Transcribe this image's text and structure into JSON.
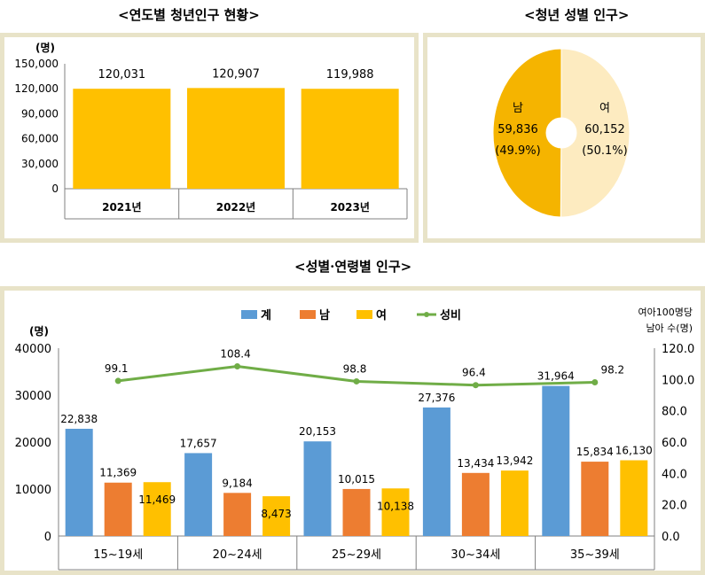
{
  "titles": {
    "annual": "<연도별 청년인구 현황>",
    "gender": "<청년 성별 인구>",
    "age": "<성별·연령별 인구>"
  },
  "chart_data": [
    {
      "type": "bar",
      "title": "<연도별 청년인구 현황>",
      "unit": "(명)",
      "categories": [
        "2021년",
        "2022년",
        "2023년"
      ],
      "values": [
        120031,
        120907,
        119988
      ],
      "value_labels": [
        "120,031",
        "120,907",
        "119,988"
      ],
      "ylim": [
        0,
        150000
      ],
      "yticks": [
        "0",
        "30,000",
        "60,000",
        "90,000",
        "120,000",
        "150,000"
      ],
      "colors": {
        "bar": "#ffc000"
      }
    },
    {
      "type": "pie",
      "title": "<청년 성별 인구>",
      "slices": [
        {
          "label": "남",
          "value": 59836,
          "value_label": "59,836",
          "pct_label": "(49.9%)",
          "color": "#f5b400"
        },
        {
          "label": "여",
          "value": 60152,
          "value_label": "60,152",
          "pct_label": "(50.1%)",
          "color": "#fdebc0"
        }
      ]
    },
    {
      "type": "bar",
      "title": "<성별·연령별 인구>",
      "unit_left": "(명)",
      "unit_right": [
        "여아100명당",
        "남아 수(명)"
      ],
      "categories": [
        "15~19세",
        "20~24세",
        "25~29세",
        "30~34세",
        "35~39세"
      ],
      "series": [
        {
          "name": "계",
          "values": [
            22838,
            17657,
            20153,
            27376,
            31964
          ],
          "labels": [
            "22,838",
            "17,657",
            "20,153",
            "27,376",
            "31,964"
          ],
          "color": "#5b9bd5"
        },
        {
          "name": "남",
          "values": [
            11369,
            9184,
            10015,
            13434,
            15834
          ],
          "labels": [
            "11,369",
            "9,184",
            "10,015",
            "13,434",
            "15,834"
          ],
          "color": "#ed7d31"
        },
        {
          "name": "여",
          "values": [
            11469,
            8473,
            10138,
            13942,
            16130
          ],
          "labels": [
            "11,469",
            "8,473",
            "10,138",
            "13,942",
            "16,130"
          ],
          "color": "#ffc000"
        }
      ],
      "line_series": {
        "name": "성비",
        "values": [
          99.1,
          108.4,
          98.8,
          96.4,
          98.2
        ],
        "labels": [
          "99.1",
          "108.4",
          "98.8",
          "96.4",
          "98.2"
        ],
        "color": "#70ad47",
        "axis": "right"
      },
      "ylim": [
        0,
        40000
      ],
      "yticks": [
        "0",
        "10000",
        "20000",
        "30000",
        "40000"
      ],
      "y2lim": [
        0,
        120
      ],
      "y2ticks": [
        "0.0",
        "20.0",
        "40.0",
        "60.0",
        "80.0",
        "100.0",
        "120.0"
      ]
    }
  ]
}
